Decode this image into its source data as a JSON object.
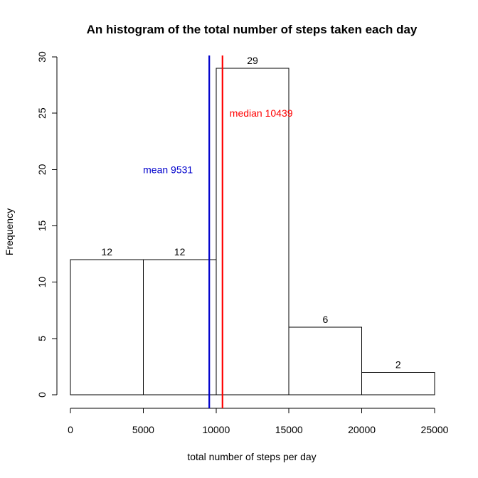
{
  "chart_data": {
    "type": "bar",
    "title": "An histogram of the total number of steps taken each day",
    "xlabel": "total number of steps per day",
    "ylabel": "Frequency",
    "bins": [
      {
        "from": 0,
        "to": 5000,
        "count": 12,
        "label": "12"
      },
      {
        "from": 5000,
        "to": 10000,
        "count": 12,
        "label": "12"
      },
      {
        "from": 10000,
        "to": 15000,
        "count": 29,
        "label": "29"
      },
      {
        "from": 15000,
        "to": 20000,
        "count": 6,
        "label": "6"
      },
      {
        "from": 20000,
        "to": 25000,
        "count": 2,
        "label": "2"
      }
    ],
    "xlim": [
      0,
      25000
    ],
    "ylim": [
      0,
      30
    ],
    "x_ticks": [
      {
        "value": 0,
        "label": "0"
      },
      {
        "value": 5000,
        "label": "5000"
      },
      {
        "value": 10000,
        "label": "10000"
      },
      {
        "value": 15000,
        "label": "15000"
      },
      {
        "value": 20000,
        "label": "20000"
      },
      {
        "value": 25000,
        "label": "25000"
      }
    ],
    "y_ticks": [
      {
        "value": 0,
        "label": "0"
      },
      {
        "value": 5,
        "label": "5"
      },
      {
        "value": 10,
        "label": "10"
      },
      {
        "value": 15,
        "label": "15"
      },
      {
        "value": 20,
        "label": "20"
      },
      {
        "value": 25,
        "label": "25"
      },
      {
        "value": 30,
        "label": "30"
      }
    ],
    "vlines": [
      {
        "name": "mean",
        "value": 9531,
        "label": "mean 9531",
        "color": "#0000cc",
        "label_side": "left",
        "label_y": 20
      },
      {
        "name": "median",
        "value": 10439,
        "label": "median 10439",
        "color": "#ff0000",
        "label_side": "right",
        "label_y": 25
      }
    ],
    "bar_fill": "#ffffff",
    "bar_stroke": "#000000",
    "grid": false
  }
}
